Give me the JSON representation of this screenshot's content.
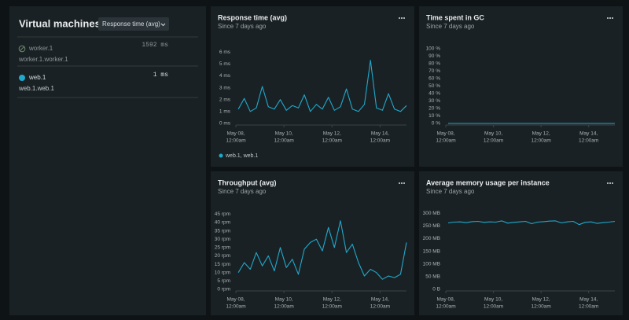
{
  "sidebar": {
    "title": "Virtual machines",
    "dropdown": "Response time (avg)",
    "entries": [
      {
        "name": "worker.1",
        "value": "1592 ms",
        "detail": "worker.1.worker.1"
      },
      {
        "name": "web.1",
        "value": "1 ms",
        "detail": "web.1.web.1"
      }
    ]
  },
  "panels": [
    {
      "title": "Response time (avg)",
      "subtitle": "Since 7 days ago",
      "chart_data": {
        "type": "line",
        "xlim": [
          8.0,
          15.1
        ],
        "ylim": [
          0,
          6.6
        ],
        "xticks": [
          {
            "value": 8,
            "label": [
              "May 08,",
              "12:00am"
            ]
          },
          {
            "value": 10,
            "label": [
              "May 10,",
              "12:00am"
            ]
          },
          {
            "value": 12,
            "label": [
              "May 12,",
              "12:00am"
            ]
          },
          {
            "value": 14,
            "label": [
              "May 14,",
              "12:00am"
            ]
          }
        ],
        "yticks": [
          {
            "value": 0,
            "label": "0 ms"
          },
          {
            "value": 1,
            "label": "1 ms"
          },
          {
            "value": 2,
            "label": "2 ms"
          },
          {
            "value": 3,
            "label": "3 ms"
          },
          {
            "value": 4,
            "label": "4 ms"
          },
          {
            "value": 5,
            "label": "5 ms"
          },
          {
            "value": 6,
            "label": "6 ms"
          }
        ],
        "series": [
          {
            "name": "web.1, web.1",
            "color": "#1fa9cc",
            "x": [
              8.1,
              8.35,
              8.6,
              8.85,
              9.1,
              9.35,
              9.6,
              9.85,
              10.1,
              10.35,
              10.6,
              10.85,
              11.1,
              11.35,
              11.6,
              11.85,
              12.1,
              12.35,
              12.6,
              12.85,
              13.1,
              13.35,
              13.6,
              13.85,
              14.1,
              14.35,
              14.6,
              14.85,
              15.1
            ],
            "values": [
              1.2,
              2.1,
              1.0,
              1.3,
              3.1,
              1.4,
              1.2,
              2.0,
              1.1,
              1.5,
              1.3,
              2.4,
              1.0,
              1.6,
              1.2,
              2.2,
              1.1,
              1.4,
              2.9,
              1.2,
              1.0,
              1.6,
              5.3,
              1.3,
              1.1,
              2.5,
              1.2,
              1.0,
              1.5
            ]
          }
        ]
      }
    },
    {
      "title": "Time spent in GC",
      "subtitle": "Since 7 days ago",
      "chart_data": {
        "type": "line",
        "xlim": [
          8.0,
          15.1
        ],
        "ylim": [
          0,
          105
        ],
        "xticks": [
          {
            "value": 8,
            "label": [
              "May 08,",
              "12:00am"
            ]
          },
          {
            "value": 10,
            "label": [
              "May 10,",
              "12:00am"
            ]
          },
          {
            "value": 12,
            "label": [
              "May 12,",
              "12:00am"
            ]
          },
          {
            "value": 14,
            "label": [
              "May 14,",
              "12:00am"
            ]
          }
        ],
        "yticks": [
          {
            "value": 0,
            "label": "0 %"
          },
          {
            "value": 10,
            "label": "10 %"
          },
          {
            "value": 20,
            "label": "20 %"
          },
          {
            "value": 30,
            "label": "30 %"
          },
          {
            "value": 40,
            "label": "40 %"
          },
          {
            "value": 50,
            "label": "50 %"
          },
          {
            "value": 60,
            "label": "60 %"
          },
          {
            "value": 70,
            "label": "70 %"
          },
          {
            "value": 80,
            "label": "80 %"
          },
          {
            "value": 90,
            "label": "90 %"
          },
          {
            "value": 100,
            "label": "100 %"
          }
        ],
        "series": [
          {
            "color": "#1fa9cc",
            "x": [
              8.1,
              8.35,
              8.6,
              8.85,
              9.1,
              9.35,
              9.6,
              9.85,
              10.1,
              10.35,
              10.6,
              10.85,
              11.1,
              11.35,
              11.6,
              11.85,
              12.1,
              12.35,
              12.6,
              12.85,
              13.1,
              13.35,
              13.6,
              13.85,
              14.1,
              14.35,
              14.6,
              14.85,
              15.1
            ],
            "values": [
              0,
              0,
              0,
              0,
              0,
              0,
              0,
              0,
              0,
              0,
              0,
              0,
              0,
              0,
              0,
              0,
              0,
              0,
              0,
              0,
              0,
              0,
              0,
              0,
              0,
              0,
              0,
              0,
              0
            ]
          }
        ]
      }
    },
    {
      "title": "Throughput (avg)",
      "subtitle": "Since 7 days ago",
      "chart_data": {
        "type": "line",
        "xlim": [
          8.0,
          15.1
        ],
        "ylim": [
          0,
          47
        ],
        "xticks": [
          {
            "value": 8,
            "label": [
              "May 08,",
              "12:00am"
            ]
          },
          {
            "value": 10,
            "label": [
              "May 10,",
              "12:00am"
            ]
          },
          {
            "value": 12,
            "label": [
              "May 12,",
              "12:00am"
            ]
          },
          {
            "value": 14,
            "label": [
              "May 14,",
              "12:00am"
            ]
          }
        ],
        "yticks": [
          {
            "value": 0,
            "label": "0 rpm"
          },
          {
            "value": 5,
            "label": "5 rpm"
          },
          {
            "value": 10,
            "label": "10 rpm"
          },
          {
            "value": 15,
            "label": "15 rpm"
          },
          {
            "value": 20,
            "label": "20 rpm"
          },
          {
            "value": 25,
            "label": "25 rpm"
          },
          {
            "value": 30,
            "label": "30 rpm"
          },
          {
            "value": 35,
            "label": "35 rpm"
          },
          {
            "value": 40,
            "label": "40 rpm"
          },
          {
            "value": 45,
            "label": "45 rpm"
          }
        ],
        "series": [
          {
            "color": "#1fa9cc",
            "x": [
              8.1,
              8.35,
              8.6,
              8.85,
              9.1,
              9.35,
              9.6,
              9.85,
              10.1,
              10.35,
              10.6,
              10.85,
              11.1,
              11.35,
              11.6,
              11.85,
              12.1,
              12.35,
              12.6,
              12.85,
              13.1,
              13.35,
              13.6,
              13.85,
              14.1,
              14.35,
              14.6,
              14.85,
              15.1
            ],
            "values": [
              10,
              16,
              12,
              22,
              14,
              20,
              11,
              25,
              13,
              18,
              9,
              24,
              28,
              30,
              23,
              37,
              25,
              41,
              22,
              27,
              16,
              8,
              12,
              10,
              6,
              8,
              7,
              9,
              28
            ]
          }
        ]
      }
    },
    {
      "title": "Average memory usage per instance",
      "subtitle": "Since 7 days ago",
      "chart_data": {
        "type": "line",
        "xlim": [
          8.0,
          15.1
        ],
        "ylim": [
          0,
          310
        ],
        "xticks": [
          {
            "value": 8,
            "label": [
              "May 08,",
              "12:00am"
            ]
          },
          {
            "value": 10,
            "label": [
              "May 10,",
              "12:00am"
            ]
          },
          {
            "value": 12,
            "label": [
              "May 12,",
              "12:00am"
            ]
          },
          {
            "value": 14,
            "label": [
              "May 14,",
              "12:00am"
            ]
          }
        ],
        "yticks": [
          {
            "value": 0,
            "label": "0 B"
          },
          {
            "value": 50,
            "label": "50 MB"
          },
          {
            "value": 100,
            "label": "100 MB"
          },
          {
            "value": 150,
            "label": "150 MB"
          },
          {
            "value": 200,
            "label": "200 MB"
          },
          {
            "value": 250,
            "label": "250 MB"
          },
          {
            "value": 300,
            "label": "300 MB"
          }
        ],
        "series": [
          {
            "color": "#1fa9cc",
            "x": [
              8.1,
              8.35,
              8.6,
              8.85,
              9.1,
              9.35,
              9.6,
              9.85,
              10.1,
              10.35,
              10.6,
              10.85,
              11.1,
              11.35,
              11.6,
              11.85,
              12.1,
              12.35,
              12.6,
              12.85,
              13.1,
              13.35,
              13.6,
              13.85,
              14.1,
              14.35,
              14.6,
              14.85,
              15.1
            ],
            "values": [
              262,
              265,
              266,
              263,
              267,
              268,
              264,
              266,
              265,
              270,
              261,
              264,
              266,
              268,
              259,
              265,
              267,
              269,
              270,
              262,
              266,
              268,
              255,
              264,
              266,
              260,
              263,
              265,
              268
            ]
          }
        ]
      }
    }
  ]
}
